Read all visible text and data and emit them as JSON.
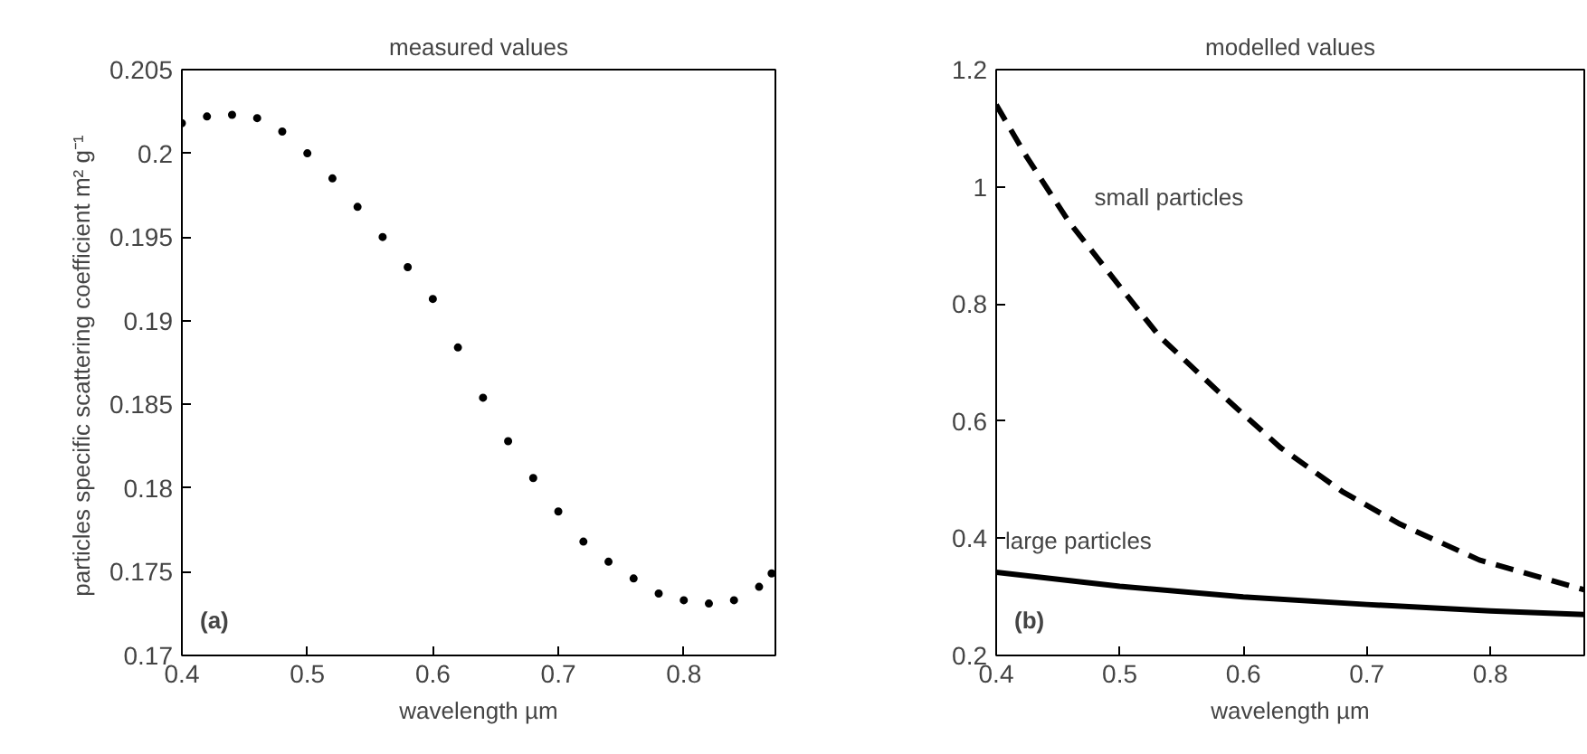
{
  "chart_data": [
    {
      "type": "scatter",
      "title": "measured values",
      "xlabel": "wavelength µm",
      "ylabel": "particles specific scattering coefficient  m² g⁻¹",
      "marker": "circle",
      "grid": false,
      "x": [
        0.4,
        0.42,
        0.44,
        0.46,
        0.48,
        0.5,
        0.52,
        0.54,
        0.56,
        0.58,
        0.6,
        0.62,
        0.64,
        0.66,
        0.68,
        0.7,
        0.72,
        0.74,
        0.76,
        0.78,
        0.8,
        0.82,
        0.84,
        0.86,
        0.87
      ],
      "series": [
        {
          "color": "#000000",
          "values": [
            0.2018,
            0.2022,
            0.2023,
            0.2021,
            0.2013,
            0.2,
            0.1985,
            0.1968,
            0.195,
            0.1932,
            0.1913,
            0.1884,
            0.1854,
            0.1828,
            0.1806,
            0.1786,
            0.1768,
            0.1756,
            0.1746,
            0.1737,
            0.1733,
            0.1731,
            0.1733,
            0.1741,
            0.1749
          ]
        }
      ],
      "xlim": [
        0.4,
        0.873
      ],
      "ylim": [
        0.17,
        0.205
      ],
      "xticks": [
        0.4,
        0.5,
        0.6,
        0.7,
        0.8
      ],
      "yticks": [
        0.17,
        0.175,
        0.18,
        0.185,
        0.19,
        0.195,
        0.2,
        0.205
      ],
      "annotations": [
        "(a)"
      ]
    },
    {
      "type": "line",
      "title": "modelled values",
      "xlabel": "wavelength µm",
      "grid": false,
      "series": [
        {
          "name": "small particles",
          "color": "#000000",
          "line_style": "dashed",
          "x": [
            0.4,
            0.425,
            0.459,
            0.5,
            0.532,
            0.58,
            0.63,
            0.68,
            0.727,
            0.791,
            0.876
          ],
          "values": [
            1.14,
            1.05,
            0.94,
            0.83,
            0.745,
            0.65,
            0.555,
            0.48,
            0.424,
            0.363,
            0.312
          ]
        },
        {
          "name": "large particles",
          "color": "#000000",
          "line_style": "solid",
          "x": [
            0.4,
            0.5,
            0.6,
            0.7,
            0.8,
            0.876
          ],
          "values": [
            0.342,
            0.318,
            0.3,
            0.287,
            0.276,
            0.27
          ]
        }
      ],
      "xlim": [
        0.4,
        0.876
      ],
      "ylim": [
        0.2,
        1.2
      ],
      "xticks": [
        0.4,
        0.5,
        0.6,
        0.7,
        0.8
      ],
      "yticks": [
        0.2,
        0.4,
        0.6,
        0.8,
        1,
        1.2
      ],
      "annotations": [
        "(b)"
      ]
    }
  ]
}
